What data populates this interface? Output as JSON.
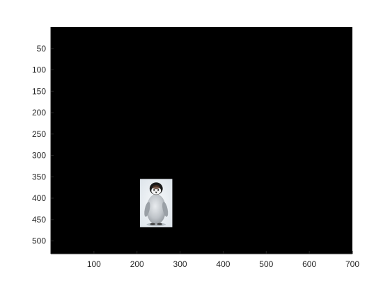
{
  "figure": {
    "background_color": "#ffffff",
    "axes_background_color": "#000000",
    "axis_color": "#262626",
    "y_axis_direction": "reverse"
  },
  "image": {
    "description": "penguin chick photo",
    "icon": "penguin-image",
    "x_range": [
      207,
      282
    ],
    "y_range": [
      355,
      468
    ]
  },
  "chart_data": {
    "type": "image",
    "title": "",
    "xlabel": "",
    "ylabel": "",
    "xlim": [
      0,
      700
    ],
    "ylim": [
      0,
      530
    ],
    "x_ticks": [
      100,
      200,
      300,
      400,
      500,
      600,
      700
    ],
    "y_ticks": [
      50,
      100,
      150,
      200,
      250,
      300,
      350,
      400,
      450,
      500
    ],
    "x_tick_labels": [
      "100",
      "200",
      "300",
      "400",
      "500",
      "600",
      "700"
    ],
    "y_tick_labels": [
      "50",
      "100",
      "150",
      "200",
      "250",
      "300",
      "350",
      "400",
      "450",
      "500"
    ],
    "grid": false
  }
}
